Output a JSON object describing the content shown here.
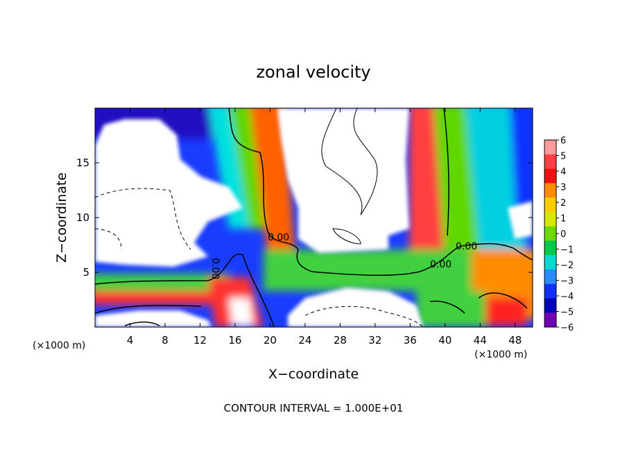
{
  "chart_data": {
    "type": "heatmap",
    "title": "zonal velocity",
    "xlabel": "X−coordinate",
    "ylabel": "Z−coordinate",
    "x_unit_label_left": "(×1000 m)",
    "x_unit_label_right": "(×1000 m)",
    "xlim": [
      0,
      50
    ],
    "ylim": [
      0,
      20
    ],
    "x_ticks": [
      4,
      8,
      12,
      16,
      20,
      24,
      28,
      32,
      36,
      40,
      44,
      48
    ],
    "y_ticks": [
      5,
      10,
      15
    ],
    "colorbar": {
      "labels": [
        "6",
        "5",
        "4",
        "3",
        "2",
        "1",
        "0",
        "−1",
        "−2",
        "−3",
        "−4",
        "−5",
        "−6"
      ],
      "values": [
        6,
        5,
        4,
        3,
        2,
        1,
        0,
        -1,
        -2,
        -3,
        -4,
        -5,
        -6
      ],
      "colors": [
        "#ff9a9a",
        "#ff4040",
        "#f01010",
        "#ff8c00",
        "#ffcc00",
        "#d8e800",
        "#6cd800",
        "#00c84a",
        "#00d8d0",
        "#2a8cff",
        "#1030ff",
        "#0000b8",
        "#7000b0"
      ]
    },
    "contour_labels": [
      "0.00",
      "0.00",
      "0.00",
      "0.00"
    ],
    "footer": "CONTOUR INTERVAL = 1.000E+01",
    "grid": false,
    "legend_position": "right"
  }
}
